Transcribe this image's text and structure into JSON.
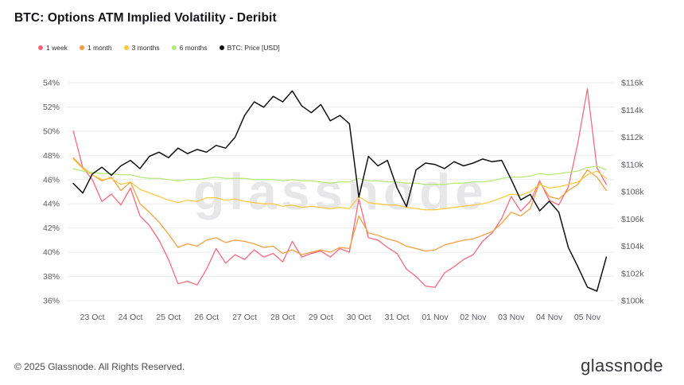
{
  "page": {
    "title": "BTC: Options ATM Implied Volatility - Deribit",
    "watermark": "glassnode",
    "footer_copyright": "© 2025 Glassnode. All Rights Reserved.",
    "brand_logo": "glassnode"
  },
  "legend": {
    "items": [
      {
        "label": "1 week",
        "color": "#fa6479"
      },
      {
        "label": "1 month",
        "color": "#f89c3c"
      },
      {
        "label": "3 months",
        "color": "#fbc93d"
      },
      {
        "label": "6 months",
        "color": "#b5e877"
      },
      {
        "label": "BTC: Price [USD]",
        "color": "#111111"
      }
    ]
  },
  "chart_data": {
    "type": "line",
    "title": "BTC: Options ATM Implied Volatility - Deribit",
    "grid": "horizontal",
    "legend_position": "top-left",
    "x_tick_labels": [
      "23 Oct",
      "24 Oct",
      "25 Oct",
      "26 Oct",
      "27 Oct",
      "28 Oct",
      "29 Oct",
      "30 Oct",
      "31 Oct",
      "01 Nov",
      "02 Nov",
      "03 Nov",
      "04 Nov",
      "05 Nov"
    ],
    "y_left": {
      "min": 36,
      "max": 54,
      "step": 2,
      "unit": "%",
      "tick_labels": [
        "36%",
        "38%",
        "40%",
        "42%",
        "44%",
        "46%",
        "48%",
        "50%",
        "52%",
        "54%"
      ]
    },
    "y_right": {
      "min": 100,
      "max": 116,
      "step": 2,
      "unit": "$k",
      "tick_labels": [
        "$100k",
        "$102k",
        "$104k",
        "$106k",
        "$108k",
        "$110k",
        "$112k",
        "$114k",
        "$116k"
      ]
    },
    "x": [
      -0.5,
      -0.25,
      0,
      0.25,
      0.5,
      0.75,
      1,
      1.25,
      1.5,
      1.75,
      2,
      2.25,
      2.5,
      2.75,
      3,
      3.25,
      3.5,
      3.75,
      4,
      4.25,
      4.5,
      4.75,
      5,
      5.25,
      5.5,
      5.75,
      6,
      6.25,
      6.5,
      6.75,
      7,
      7.25,
      7.5,
      7.75,
      8,
      8.25,
      8.5,
      8.75,
      9,
      9.25,
      9.5,
      9.75,
      10,
      10.25,
      10.5,
      10.75,
      11,
      11.25,
      11.5,
      11.75,
      12,
      12.25,
      12.5,
      12.75,
      13,
      13.25,
      13.5
    ],
    "series": [
      {
        "name": "1 week",
        "color": "#fa6479",
        "axis": "left",
        "values": [
          50.0,
          47.0,
          46.0,
          44.2,
          44.8,
          43.9,
          45.3,
          43.0,
          42.2,
          41.0,
          39.4,
          37.4,
          37.6,
          37.3,
          38.6,
          40.3,
          39.1,
          39.8,
          39.4,
          40.2,
          39.6,
          39.9,
          39.2,
          40.9,
          39.6,
          39.9,
          40.1,
          39.6,
          40.3,
          40.0,
          44.4,
          41.2,
          41.0,
          40.4,
          39.9,
          38.6,
          38.0,
          37.2,
          37.1,
          38.3,
          38.8,
          39.4,
          39.8,
          40.9,
          41.6,
          42.8,
          44.6,
          43.4,
          44.2,
          45.9,
          44.3,
          43.9,
          45.4,
          49.0,
          53.5,
          47.0,
          45.6
        ]
      },
      {
        "name": "1 month",
        "color": "#f89c3c",
        "axis": "left",
        "values": [
          47.8,
          47.0,
          46.4,
          45.9,
          46.2,
          45.1,
          45.8,
          44.0,
          43.3,
          42.5,
          41.5,
          40.4,
          40.7,
          40.5,
          41.0,
          41.2,
          40.8,
          41.0,
          40.9,
          40.7,
          40.4,
          40.5,
          39.9,
          40.2,
          39.8,
          40.0,
          40.2,
          40.0,
          40.4,
          40.3,
          43.0,
          41.6,
          41.4,
          41.1,
          40.9,
          40.5,
          40.3,
          40.1,
          40.2,
          40.6,
          40.8,
          41.0,
          41.1,
          41.4,
          41.7,
          42.4,
          43.3,
          43.0,
          43.6,
          45.8,
          44.6,
          44.4,
          45.1,
          45.6,
          46.8,
          46.2,
          45.1
        ]
      },
      {
        "name": "3 months",
        "color": "#fbc93d",
        "axis": "left",
        "values": [
          47.7,
          46.9,
          46.4,
          46.0,
          46.1,
          45.6,
          45.8,
          45.2,
          44.9,
          44.6,
          44.3,
          44.1,
          44.3,
          44.2,
          44.5,
          44.5,
          44.3,
          44.4,
          44.2,
          44.1,
          44.0,
          44.0,
          43.8,
          43.9,
          43.7,
          43.8,
          43.7,
          43.6,
          43.7,
          43.6,
          44.6,
          44.1,
          44.0,
          43.9,
          43.9,
          43.7,
          43.6,
          43.5,
          43.5,
          43.6,
          43.7,
          43.8,
          43.9,
          44.0,
          44.2,
          44.5,
          44.8,
          44.7,
          45.0,
          45.6,
          45.3,
          45.4,
          45.6,
          45.8,
          46.4,
          46.7,
          46.1
        ]
      },
      {
        "name": "6 months",
        "color": "#b5e877",
        "axis": "left",
        "values": [
          46.9,
          46.7,
          46.6,
          46.5,
          46.5,
          46.4,
          46.4,
          46.2,
          46.1,
          46.1,
          46.0,
          45.9,
          46.0,
          46.0,
          46.1,
          46.2,
          46.1,
          46.1,
          46.1,
          46.0,
          46.0,
          46.0,
          45.9,
          46.0,
          45.9,
          45.9,
          45.8,
          45.7,
          45.8,
          45.8,
          46.1,
          45.9,
          45.9,
          45.8,
          45.8,
          45.7,
          45.7,
          45.6,
          45.6,
          45.6,
          45.7,
          45.7,
          45.8,
          45.8,
          45.9,
          46.1,
          46.2,
          46.2,
          46.3,
          46.5,
          46.4,
          46.5,
          46.6,
          46.7,
          47.0,
          47.1,
          46.8
        ]
      },
      {
        "name": "BTC: Price [USD]",
        "color": "#111111",
        "axis": "right",
        "values": [
          108.6,
          107.9,
          109.3,
          109.8,
          109.2,
          109.9,
          110.3,
          109.7,
          110.6,
          110.9,
          110.5,
          111.2,
          110.8,
          111.1,
          110.9,
          111.4,
          111.2,
          112.0,
          113.6,
          114.6,
          114.2,
          115.0,
          114.6,
          115.4,
          114.3,
          113.8,
          114.4,
          113.2,
          113.6,
          113.0,
          107.6,
          110.6,
          109.9,
          110.3,
          108.3,
          106.9,
          109.6,
          110.1,
          110.0,
          109.7,
          110.2,
          109.9,
          110.1,
          110.4,
          110.2,
          110.3,
          108.9,
          107.4,
          107.8,
          106.6,
          107.3,
          106.5,
          103.9,
          102.5,
          101.0,
          100.7,
          103.2
        ]
      }
    ]
  }
}
